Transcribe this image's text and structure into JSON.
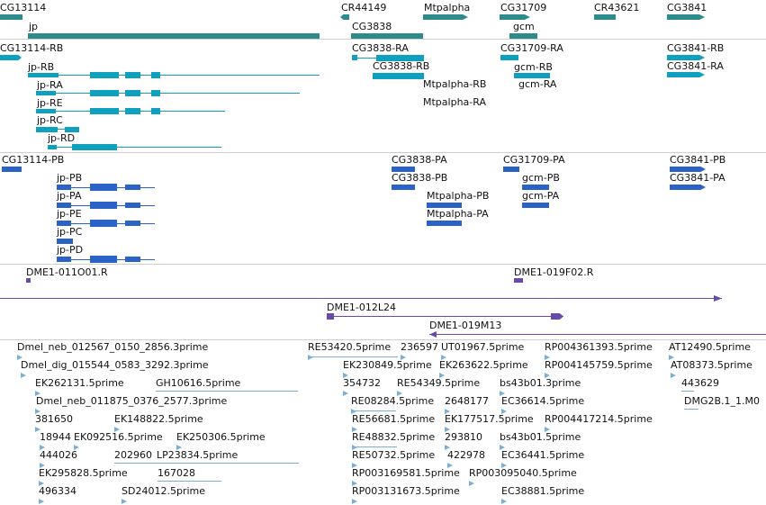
{
  "colors": {
    "gene": "#2e8b8b",
    "transcript": "#0fa0bf",
    "protein": "#2a62c8",
    "clone": "#6a4aa8",
    "est": "#7aafd6",
    "separator": "#cfcfcf"
  },
  "genes": [
    "CG13114",
    "jp",
    "CR44149",
    "CG3838",
    "Mtpalpha",
    "CG31709",
    "gcm",
    "CR43621",
    "CG3841"
  ],
  "transcripts": [
    "CG13114-RB",
    "jp-RB",
    "jp-RA",
    "jp-RE",
    "jp-RC",
    "jp-RD",
    "CG3838-RA",
    "CG3838-RB",
    "Mtpalpha-RB",
    "Mtpalpha-RA",
    "CG31709-RA",
    "gcm-RB",
    "gcm-RA",
    "CG3841-RB",
    "CG3841-RA"
  ],
  "proteins": [
    "CG13114-PB",
    "jp-PB",
    "jp-PA",
    "jp-PE",
    "jp-PC",
    "jp-PD",
    "CG3838-PA",
    "CG3838-PB",
    "Mtpalpha-PB",
    "Mtpalpha-PA",
    "CG31709-PA",
    "gcm-PB",
    "gcm-PA",
    "CG3841-PB",
    "CG3841-PA"
  ],
  "clones": [
    "DME1-011O01.R",
    "DME1-019F02.R",
    "DME1-012L24",
    "DME1-019M13"
  ],
  "ests": [
    "Dmel_neb_012567_0150_2856.3prime",
    "Dmel_dig_015544_0583_3292.3prime",
    "EK262131.5prime",
    "GH10616.5prime",
    "Dmel_neb_011875_0376_2577.3prime",
    "381650",
    "EK148822.5prime",
    "18944",
    "EK092516.5prime",
    "EK250306.5prime",
    "444026",
    "202960",
    "LP23834.5prime",
    "EK295828.5prime",
    "167028",
    "496334",
    "SD24012.5prime",
    "RE53420.5prime",
    "236597",
    "UT01967.5prime",
    "EK230849.5prime",
    "EK263622.5prime",
    "354732",
    "RE54349.5prime",
    "RE08284.5prime",
    "2648177",
    "RE56681.5prime",
    "EK177517.5prime",
    "RE48832.5prime",
    "293810",
    "RE50732.5prime",
    "422978",
    "RP003169581.5prime",
    "RP003095040.5prime",
    "RP003131673.5prime",
    "RP004361393.5prime",
    "RP004145759.5prime",
    "bs43b01.3prime",
    "EC36614.5prime",
    "RP004417214.5prime",
    "bs43b01.5prime",
    "EC36441.5prime",
    "EC38881.5prime",
    "AT12490.5prime",
    "AT08373.5prime",
    "443629",
    "DMG2B.1_1.M0"
  ]
}
